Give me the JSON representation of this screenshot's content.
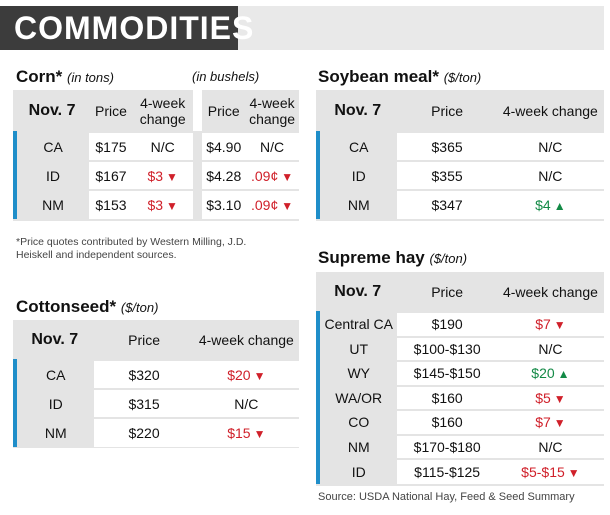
{
  "title": "COMMODITIES",
  "corn": {
    "name": "Corn*",
    "unit": "(in tons)",
    "unit_b": "(in bushels)",
    "header": {
      "date": "Nov. 7",
      "price": "Price",
      "change": "4-week change",
      "price_b": "Price",
      "change_b": "4-week change"
    },
    "rows": [
      {
        "label": "CA",
        "price": "$175",
        "change": "N/C",
        "dir": "none",
        "price_b": "$4.90",
        "change_b": "N/C",
        "dir_b": "none"
      },
      {
        "label": "ID",
        "price": "$167",
        "change": "$3",
        "dir": "down",
        "price_b": "$4.28",
        "change_b": ".09¢",
        "dir_b": "down"
      },
      {
        "label": "NM",
        "price": "$153",
        "change": "$3",
        "dir": "down",
        "price_b": "$3.10",
        "change_b": ".09¢",
        "dir_b": "down"
      }
    ]
  },
  "footnote": "*Price quotes contributed by Western Milling, J.D. Heiskell and independent sources.",
  "soybean": {
    "name": "Soybean meal*",
    "unit": "($/ton)",
    "header": {
      "date": "Nov. 7",
      "price": "Price",
      "change": "4-week change"
    },
    "rows": [
      {
        "label": "CA",
        "price": "$365",
        "change": "N/C",
        "dir": "none"
      },
      {
        "label": "ID",
        "price": "$355",
        "change": "N/C",
        "dir": "none"
      },
      {
        "label": "NM",
        "price": "$347",
        "change": "$4",
        "dir": "up"
      }
    ]
  },
  "cottonseed": {
    "name": "Cottonseed*",
    "unit": "($/ton)",
    "header": {
      "date": "Nov. 7",
      "price": "Price",
      "change": "4-week change"
    },
    "rows": [
      {
        "label": "CA",
        "price": "$320",
        "change": "$20",
        "dir": "down"
      },
      {
        "label": "ID",
        "price": "$315",
        "change": "N/C",
        "dir": "none"
      },
      {
        "label": "NM",
        "price": "$220",
        "change": "$15",
        "dir": "down"
      }
    ]
  },
  "hay": {
    "name": "Supreme hay",
    "unit": "($/ton)",
    "header": {
      "date": "Nov. 7",
      "price": "Price",
      "change": "4-week change"
    },
    "rows": [
      {
        "label": "Central CA",
        "price": "$190",
        "change": "$7",
        "dir": "down"
      },
      {
        "label": "UT",
        "price": "$100-$130",
        "change": "N/C",
        "dir": "none"
      },
      {
        "label": "WY",
        "price": "$145-$150",
        "change": "$20",
        "dir": "up"
      },
      {
        "label": "WA/OR",
        "price": "$160",
        "change": "$5",
        "dir": "down"
      },
      {
        "label": "CO",
        "price": "$160",
        "change": "$7",
        "dir": "down"
      },
      {
        "label": "NM",
        "price": "$170-$180",
        "change": "N/C",
        "dir": "none"
      },
      {
        "label": "ID",
        "price": "$115-$125",
        "change": "$5-$15",
        "dir": "down"
      }
    ]
  },
  "source": "Source: USDA National Hay, Feed & Seed Summary",
  "colors": {
    "down": "#d0202a",
    "up": "#138a46",
    "accent": "#1f8ec9",
    "banner": "#3c3c3c"
  }
}
